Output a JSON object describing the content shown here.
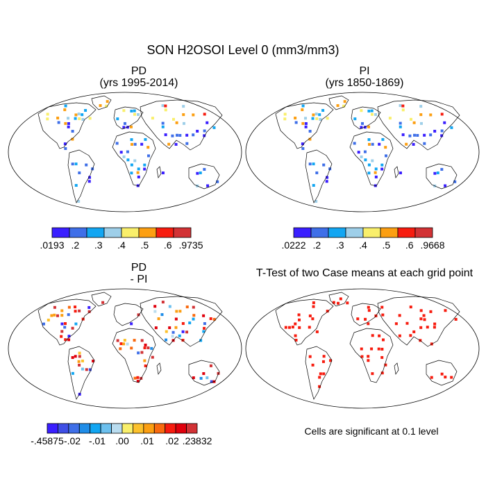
{
  "title": "SON H2OSOI Level 0 (mm3/mm3)",
  "panels": [
    {
      "id": "pd",
      "title_line1": "PD",
      "title_line2": "(yrs 1995-2014)",
      "colorbar": {
        "colors": [
          "#3a1fff",
          "#3f6fe8",
          "#12a6f2",
          "#9ecfe9",
          "#f9ef6b",
          "#fc9f12",
          "#f71c0f",
          "#d23235"
        ],
        "labels": [
          ".0193",
          ".2",
          ".3",
          ".4",
          ".5",
          ".6",
          ".9735"
        ]
      }
    },
    {
      "id": "pi",
      "title_line1": "PI",
      "title_line2": "(yrs 1850-1869)",
      "colorbar": {
        "colors": [
          "#3a1fff",
          "#3f6fe8",
          "#12a6f2",
          "#9ecfe9",
          "#f9ef6b",
          "#fc9f12",
          "#f71c0f",
          "#d23235"
        ],
        "labels": [
          ".0222",
          ".2",
          ".3",
          ".4",
          ".5",
          ".6",
          ".9668"
        ]
      }
    },
    {
      "id": "diff",
      "title_line1": "PD",
      "title_line2": "- PI",
      "colorbar": {
        "colors": [
          "#3a1fff",
          "#3f4fe6",
          "#3f6fe8",
          "#1f8de8",
          "#12a6f2",
          "#6cc0ee",
          "#b9dcef",
          "#f9ef6b",
          "#fcc12c",
          "#fc9f12",
          "#f96a0f",
          "#f71c0f",
          "#e0000c",
          "#d23235"
        ],
        "labels": [
          "-.45875",
          "-.02",
          "-.01",
          ".00",
          ".01",
          ".02",
          ".23832"
        ]
      }
    },
    {
      "id": "ttest",
      "title_line1": "T-Test of two Case means at each grid point",
      "note": "Cells are significant at 0.1 level"
    }
  ]
}
